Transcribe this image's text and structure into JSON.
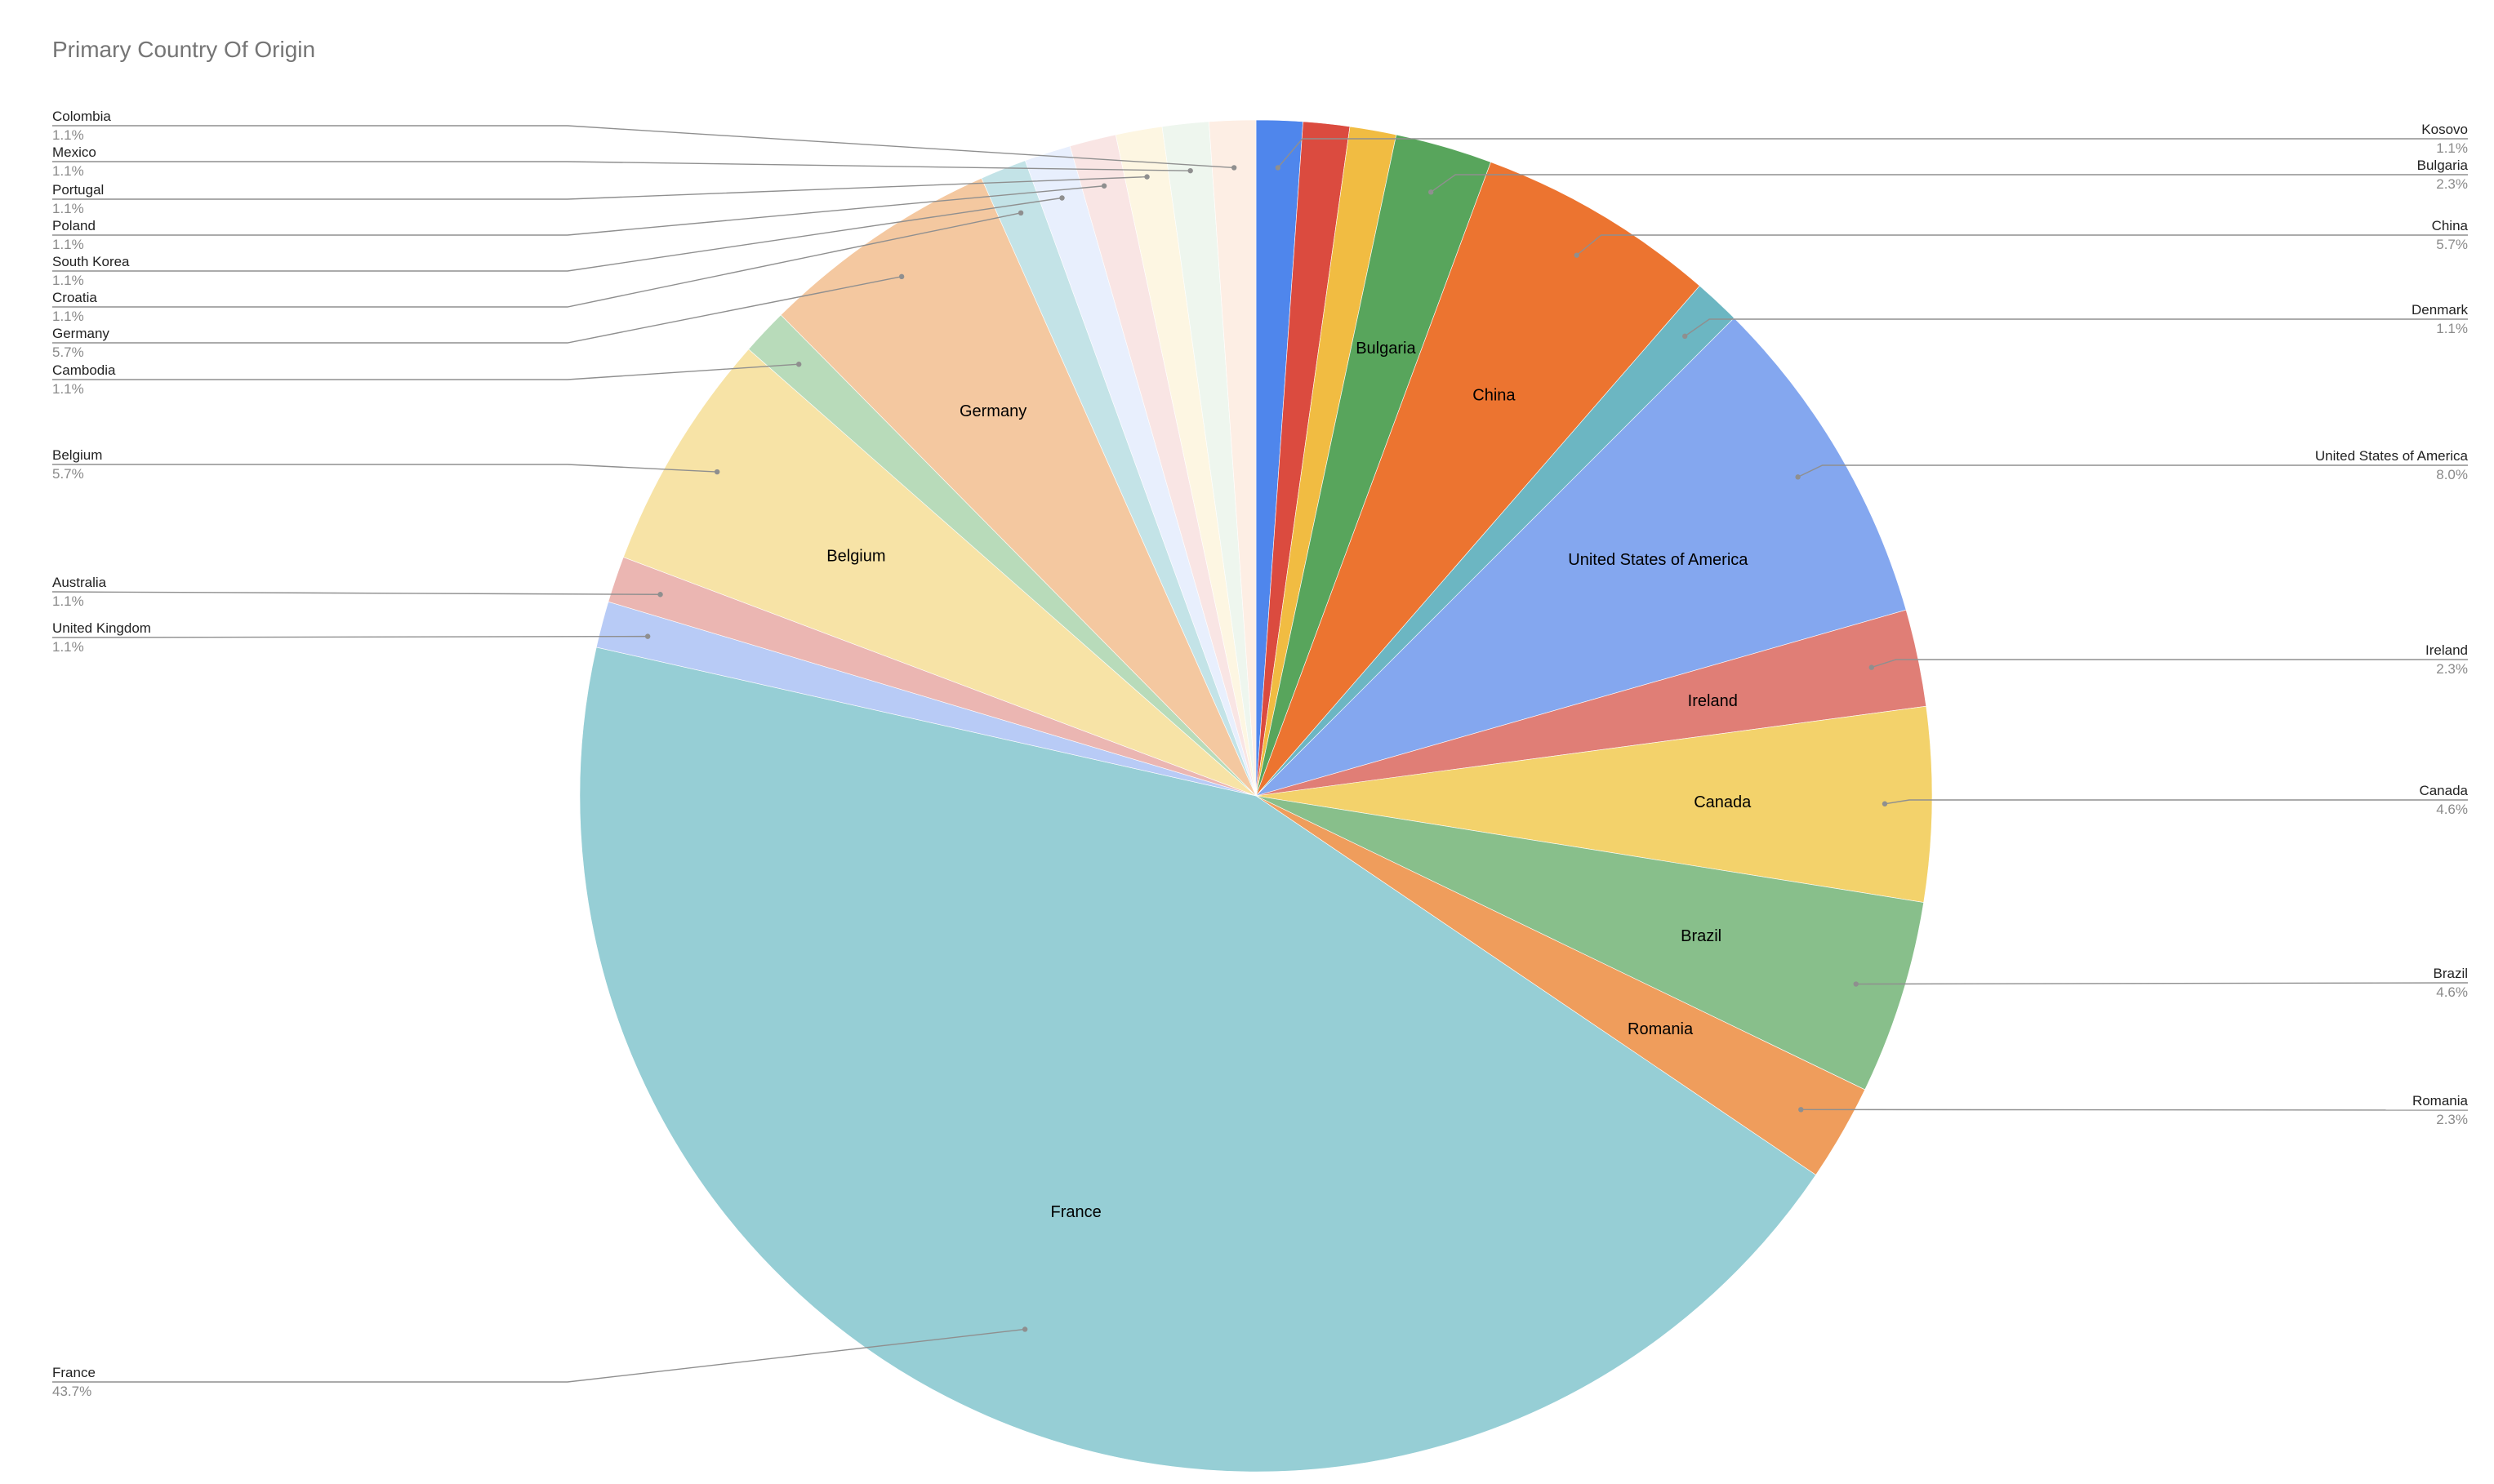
{
  "chart_data": {
    "type": "pie",
    "title": "Primary Country Of Origin",
    "slices": [
      {
        "label": "Kosovo",
        "value": 1.1,
        "pct_label": "1.1%",
        "color": "#4f86ec",
        "inner_label": ""
      },
      {
        "label": "",
        "value": 1.1,
        "pct_label": "",
        "color": "#db4b3f",
        "inner_label": ""
      },
      {
        "label": "",
        "value": 1.1,
        "pct_label": "",
        "color": "#f1bc42",
        "inner_label": ""
      },
      {
        "label": "Bulgaria",
        "value": 2.3,
        "pct_label": "2.3%",
        "color": "#58a55c",
        "inner_label": "Bulgaria"
      },
      {
        "label": "China",
        "value": 5.7,
        "pct_label": "5.7%",
        "color": "#ec7430",
        "inner_label": "China"
      },
      {
        "label": "Denmark",
        "value": 1.1,
        "pct_label": "1.1%",
        "color": "#6cb6c2",
        "inner_label": ""
      },
      {
        "label": "United States of America",
        "value": 8.0,
        "pct_label": "8.0%",
        "color": "#84a7ef",
        "inner_label": "United States of America"
      },
      {
        "label": "Ireland",
        "value": 2.3,
        "pct_label": "2.3%",
        "color": "#e07e76",
        "inner_label": "Ireland"
      },
      {
        "label": "Canada",
        "value": 4.6,
        "pct_label": "4.6%",
        "color": "#f3d26b",
        "inner_label": "Canada"
      },
      {
        "label": "Brazil",
        "value": 4.6,
        "pct_label": "4.6%",
        "color": "#88bf8b",
        "inner_label": "Brazil"
      },
      {
        "label": "Romania",
        "value": 2.3,
        "pct_label": "2.3%",
        "color": "#ef9d5c",
        "inner_label": "Romania"
      },
      {
        "label": "France",
        "value": 43.7,
        "pct_label": "43.7%",
        "color": "#96ced5",
        "inner_label": "France"
      },
      {
        "label": "United Kingdom",
        "value": 1.1,
        "pct_label": "1.1%",
        "color": "#b8cbf6",
        "inner_label": ""
      },
      {
        "label": "Australia",
        "value": 1.1,
        "pct_label": "1.1%",
        "color": "#ebb6b2",
        "inner_label": ""
      },
      {
        "label": "Belgium",
        "value": 5.7,
        "pct_label": "5.7%",
        "color": "#f7e3a6",
        "inner_label": "Belgium"
      },
      {
        "label": "Cambodia",
        "value": 1.1,
        "pct_label": "1.1%",
        "color": "#b8dbba",
        "inner_label": ""
      },
      {
        "label": "Germany",
        "value": 5.7,
        "pct_label": "5.7%",
        "color": "#f4c8a0",
        "inner_label": "Germany"
      },
      {
        "label": "Croatia",
        "value": 1.1,
        "pct_label": "1.1%",
        "color": "#c3e3e7",
        "inner_label": ""
      },
      {
        "label": "South Korea",
        "value": 1.1,
        "pct_label": "1.1%",
        "color": "#e8effd",
        "inner_label": ""
      },
      {
        "label": "Poland",
        "value": 1.1,
        "pct_label": "1.1%",
        "color": "#f9e5e4",
        "inner_label": ""
      },
      {
        "label": "Portugal",
        "value": 1.1,
        "pct_label": "1.1%",
        "color": "#fdf6e2",
        "inner_label": ""
      },
      {
        "label": "Mexico",
        "value": 1.1,
        "pct_label": "1.1%",
        "color": "#eef6ee",
        "inner_label": ""
      },
      {
        "label": "Colombia",
        "value": 1.1,
        "pct_label": "1.1%",
        "color": "#fdeee4",
        "inner_label": ""
      }
    ],
    "legend": "leader lines on both sides"
  }
}
